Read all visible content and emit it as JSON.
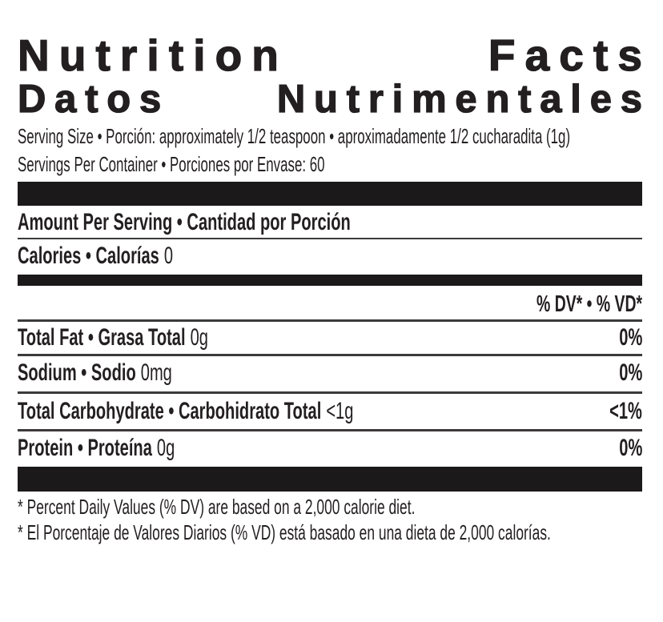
{
  "title": {
    "line1_word1": "Nutrition",
    "line1_word2": "Facts",
    "line2_word1": "Datos",
    "line2_word2": "Nutrimentales"
  },
  "serving": {
    "size_line": "Serving Size • Porción: approximately 1/2 teaspoon • aproximadamente 1/2 cucharadita (1g)",
    "per_container_line": "Servings Per Container • Porciones por Envase: 60"
  },
  "sections": {
    "amount_per_serving": "Amount Per Serving • Cantidad por Porción",
    "calories_label": "Calories • Calorías",
    "calories_value": "0",
    "dv_header": "% DV* • % VD*"
  },
  "nutrients": [
    {
      "name": "Total Fat • Grasa Total",
      "amount": "0g",
      "dv": "0%"
    },
    {
      "name": "Sodium • Sodio",
      "amount": "0mg",
      "dv": "0%"
    },
    {
      "name": "Total Carbohydrate • Carbohidrato Total",
      "amount": "<1g",
      "dv": "<1%"
    },
    {
      "name": "Protein • Proteína",
      "amount": "0g",
      "dv": "0%"
    }
  ],
  "footnotes": [
    "* Percent Daily Values (% DV) are based on a 2,000 calorie diet.",
    "* El Porcentaje de Valores Diarios (% VD) está basado en una dieta de 2,000 calorías."
  ],
  "colors": {
    "text": "#231f20",
    "bar": "#1c191a",
    "rule": "#3d3a3b"
  }
}
